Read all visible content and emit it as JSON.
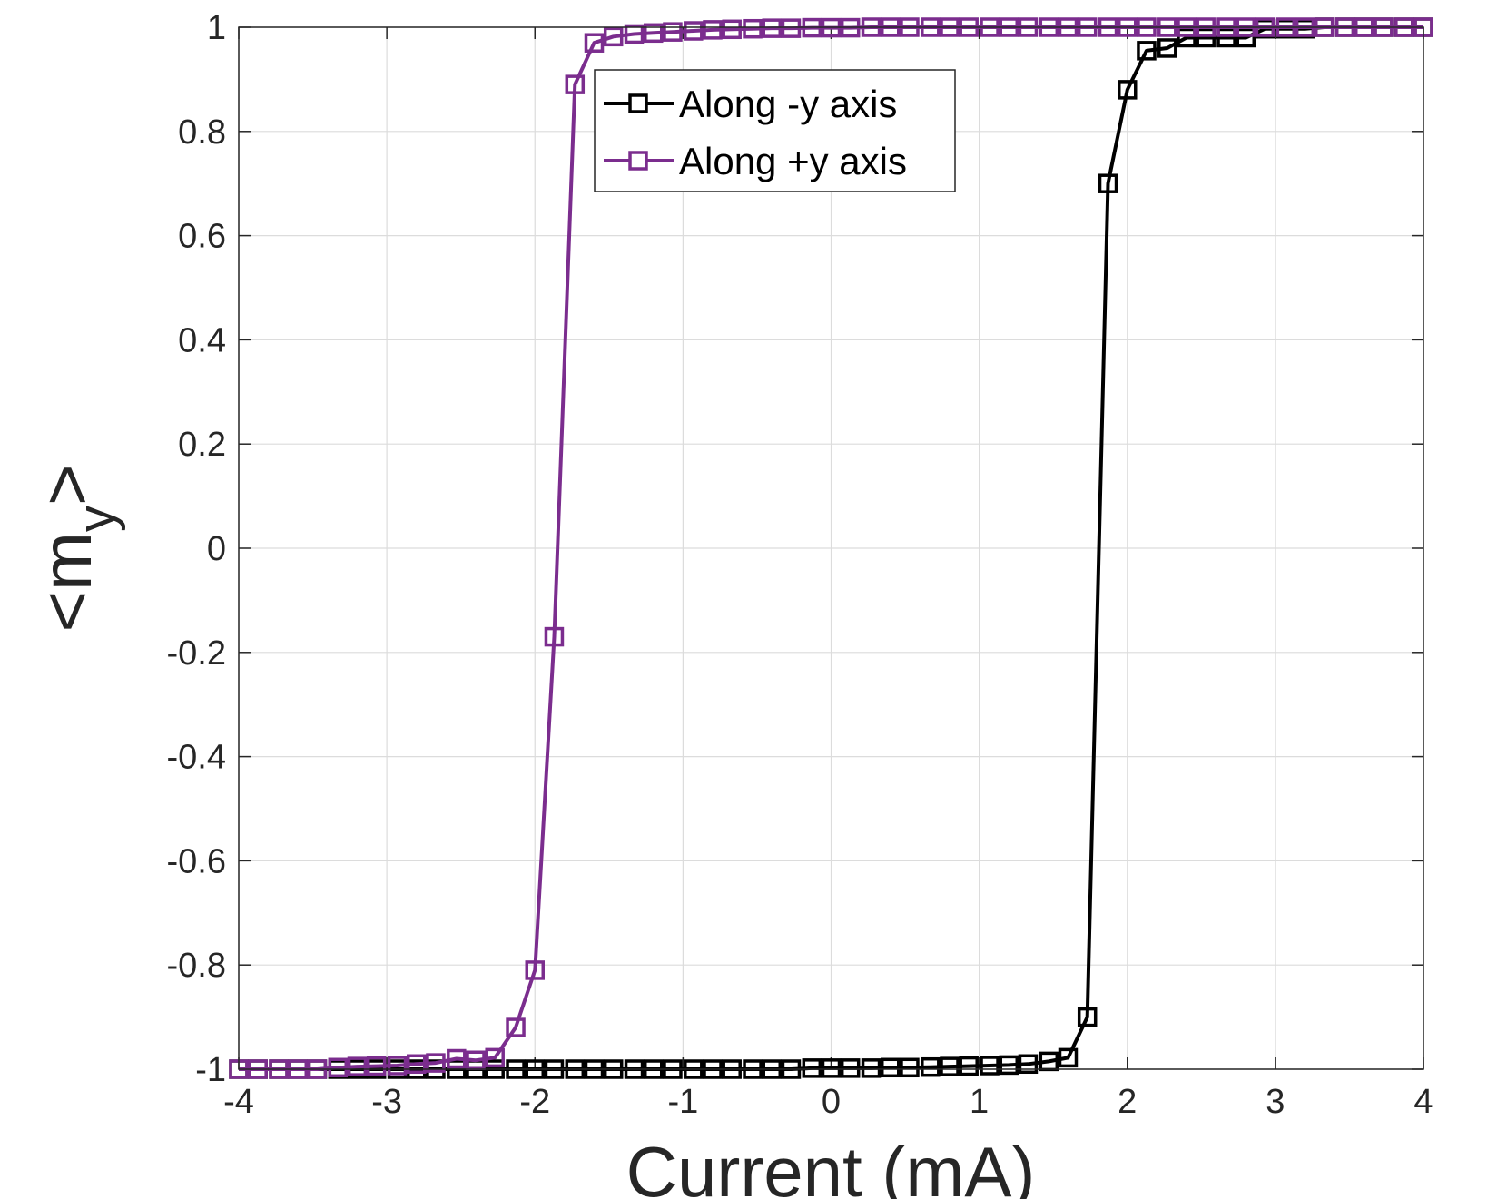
{
  "chart_data": {
    "type": "line",
    "xlabel": "Current (mA)",
    "ylabel_main": "<m",
    "ylabel_sub": "y",
    "ylabel_close": ">",
    "xlim": [
      -4,
      4
    ],
    "ylim": [
      -1,
      1
    ],
    "xticks": [
      -4,
      -3,
      -2,
      -1,
      0,
      1,
      2,
      3,
      4
    ],
    "xtick_labels": [
      "-4",
      "-3",
      "-2",
      "-1",
      "0",
      "1",
      "2",
      "3",
      "4"
    ],
    "yticks": [
      -1,
      -0.8,
      -0.6,
      -0.4,
      -0.2,
      0,
      0.2,
      0.4,
      0.6,
      0.8,
      1
    ],
    "ytick_labels": [
      "-1",
      "-0.8",
      "-0.6",
      "-0.4",
      "-0.2",
      "0",
      "0.2",
      "0.4",
      "0.6",
      "0.8",
      "1"
    ],
    "grid": true,
    "legend_position": "top-center",
    "series": [
      {
        "name": "Along -y axis",
        "color": "#000000",
        "marker": "square",
        "x": [
          -4,
          -3.87,
          -3.73,
          -3.6,
          -3.47,
          -3.33,
          -3.2,
          -3.07,
          -2.93,
          -2.8,
          -2.67,
          -2.53,
          -2.4,
          -2.27,
          -2.13,
          -2,
          -1.87,
          -1.73,
          -1.6,
          -1.47,
          -1.33,
          -1.2,
          -1.07,
          -0.93,
          -0.8,
          -0.67,
          -0.53,
          -0.4,
          -0.27,
          -0.13,
          0,
          0.13,
          0.27,
          0.4,
          0.53,
          0.67,
          0.8,
          0.93,
          1.07,
          1.2,
          1.33,
          1.47,
          1.6,
          1.73,
          1.87,
          2,
          2.13,
          2.27,
          2.4,
          2.53,
          2.67,
          2.8,
          2.93,
          3.07,
          3.2,
          3.33,
          3.47,
          3.6,
          3.73,
          3.87,
          4
        ],
        "y": [
          -1,
          -1,
          -1,
          -1,
          -1,
          -1,
          -1,
          -1,
          -1,
          -1,
          -1,
          -1,
          -1,
          -1,
          -1,
          -1,
          -1,
          -1,
          -1,
          -1,
          -1,
          -1,
          -1,
          -1,
          -1,
          -1,
          -1,
          -1,
          -1,
          -0.998,
          -0.998,
          -0.998,
          -0.998,
          -0.997,
          -0.997,
          -0.996,
          -0.995,
          -0.994,
          -0.993,
          -0.992,
          -0.99,
          -0.985,
          -0.978,
          -0.9,
          0.7,
          0.88,
          0.955,
          0.96,
          0.98,
          0.98,
          0.98,
          0.98,
          0.997,
          0.997,
          0.997,
          1,
          1,
          1,
          1,
          1,
          1
        ]
      },
      {
        "name": "Along +y axis",
        "color": "#7b2d8e",
        "marker": "square",
        "x": [
          -4,
          -3.87,
          -3.73,
          -3.6,
          -3.47,
          -3.33,
          -3.2,
          -3.07,
          -2.93,
          -2.8,
          -2.67,
          -2.53,
          -2.4,
          -2.27,
          -2.13,
          -2,
          -1.87,
          -1.73,
          -1.6,
          -1.47,
          -1.33,
          -1.2,
          -1.07,
          -0.93,
          -0.8,
          -0.67,
          -0.53,
          -0.4,
          -0.27,
          -0.13,
          0,
          0.13,
          0.27,
          0.4,
          0.53,
          0.67,
          0.8,
          0.93,
          1.07,
          1.2,
          1.33,
          1.47,
          1.6,
          1.73,
          1.87,
          2,
          2.13,
          2.27,
          2.4,
          2.53,
          2.67,
          2.8,
          2.93,
          3.07,
          3.2,
          3.33,
          3.47,
          3.6,
          3.73,
          3.87,
          4
        ],
        "y": [
          -1,
          -1,
          -1,
          -1,
          -1,
          -0.997,
          -0.995,
          -0.994,
          -0.993,
          -0.99,
          -0.988,
          -0.98,
          -0.983,
          -0.978,
          -0.92,
          -0.81,
          -0.17,
          0.89,
          0.97,
          0.982,
          0.987,
          0.989,
          0.991,
          0.993,
          0.995,
          0.996,
          0.997,
          0.998,
          0.998,
          0.999,
          0.999,
          0.999,
          1,
          1,
          1,
          1,
          1,
          1,
          1,
          1,
          1,
          1,
          1,
          1,
          1,
          1,
          1,
          1,
          1,
          1,
          1,
          1,
          1,
          1,
          1,
          1,
          1,
          1,
          1,
          1,
          1
        ]
      }
    ]
  }
}
